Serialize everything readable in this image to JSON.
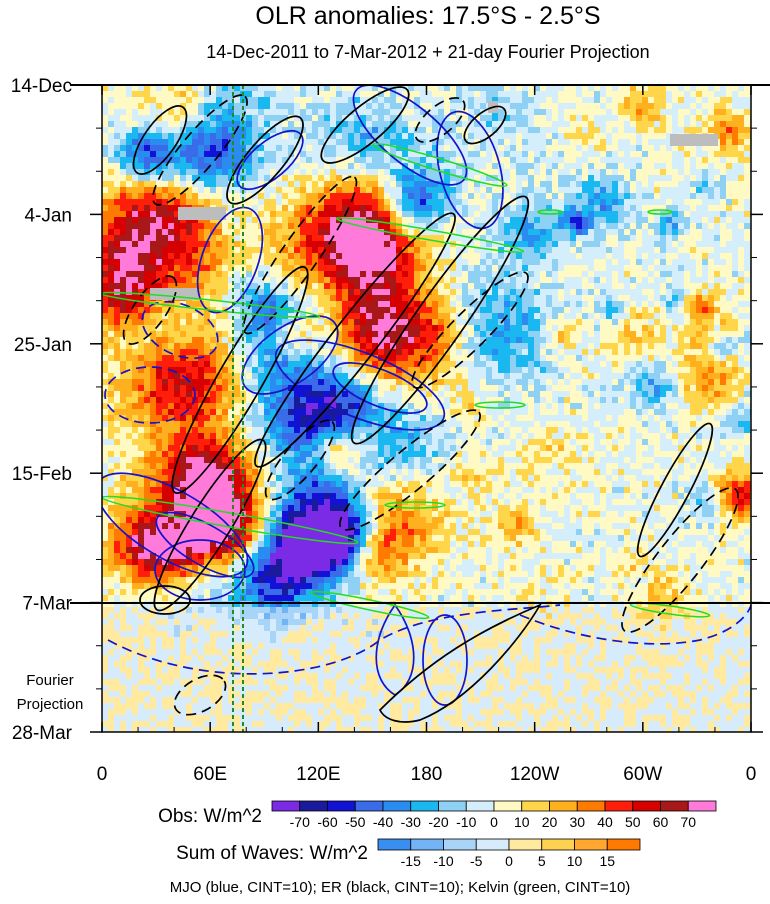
{
  "chart_data": {
    "type": "heatmap",
    "title": "OLR anomalies: 17.5°S - 2.5°S",
    "subtitle": "14-Dec-2011 to 7-Mar-2012 + 21-day Fourier Projection",
    "x_ticks": [
      "0",
      "60E",
      "120E",
      "180",
      "120W",
      "60W",
      "0"
    ],
    "y_ticks": [
      "14-Dec",
      "4-Jan",
      "25-Jan",
      "15-Feb",
      "7-Mar",
      "28-Mar"
    ],
    "projection_label": [
      "Fourier",
      "Projection"
    ],
    "obs_colorbar": {
      "label": "Obs: W/m^2",
      "ticks": [
        "-70",
        "-60",
        "-50",
        "-40",
        "-30",
        "-20",
        "-10",
        "0",
        "10",
        "20",
        "30",
        "40",
        "50",
        "60",
        "70"
      ],
      "colors": [
        "#7b2be6",
        "#1a1a9c",
        "#1212d6",
        "#3a6be8",
        "#2a8cf0",
        "#1ab8f0",
        "#8fd0f5",
        "#d4eefb",
        "#fff9c4",
        "#ffd54a",
        "#ffb01f",
        "#ff7a00",
        "#ff1e0a",
        "#d60000",
        "#a81818",
        "#ff7ad9"
      ]
    },
    "waves_colorbar": {
      "label": "Sum of Waves: W/m^2",
      "ticks": [
        "-15",
        "-10",
        "-5",
        "0",
        "5",
        "10",
        "15"
      ],
      "colors": [
        "#3a8ef0",
        "#72b4f5",
        "#a8d4f8",
        "#d6ecfc",
        "#ffeaa0",
        "#ffd150",
        "#ffa72e",
        "#ff7a00"
      ]
    },
    "footer": "MJO (blue, CINT=10); ER (black, CINT=10); Kelvin (green, CINT=10)",
    "series": [
      {
        "wave": "MJO",
        "color": "#1414c8"
      },
      {
        "wave": "ER",
        "color": "#000000"
      },
      {
        "wave": "Kelvin",
        "color": "#22dd22"
      }
    ]
  }
}
